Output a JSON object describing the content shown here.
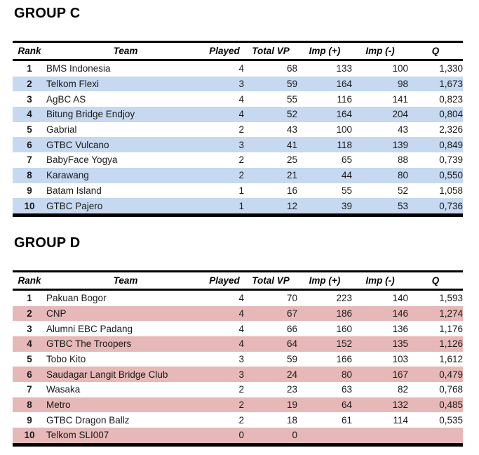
{
  "groups": [
    {
      "title": "GROUP C",
      "highlight_color": "#C6D9F0",
      "columns": [
        "Rank",
        "Team",
        "Played",
        "Total VP",
        "Imp (+)",
        "Imp (-)",
        "Q"
      ],
      "rows": [
        {
          "shaded": false,
          "cells": [
            "1",
            "BMS Indonesia",
            "4",
            "68",
            "133",
            "100",
            "1,330"
          ]
        },
        {
          "shaded": true,
          "cells": [
            "2",
            "Telkom Flexi",
            "3",
            "59",
            "164",
            "98",
            "1,673"
          ]
        },
        {
          "shaded": false,
          "cells": [
            "3",
            "AgBC AS",
            "4",
            "55",
            "116",
            "141",
            "0,823"
          ]
        },
        {
          "shaded": true,
          "cells": [
            "4",
            "Bitung Bridge Endjoy",
            "4",
            "52",
            "164",
            "204",
            "0,804"
          ]
        },
        {
          "shaded": false,
          "cells": [
            "5",
            "Gabrial",
            "2",
            "43",
            "100",
            "43",
            "2,326"
          ]
        },
        {
          "shaded": true,
          "cells": [
            "6",
            "GTBC Vulcano",
            "3",
            "41",
            "118",
            "139",
            "0,849"
          ]
        },
        {
          "shaded": false,
          "cells": [
            "7",
            "BabyFace Yogya",
            "2",
            "25",
            "65",
            "88",
            "0,739"
          ]
        },
        {
          "shaded": true,
          "cells": [
            "8",
            "Karawang",
            "2",
            "21",
            "44",
            "80",
            "0,550"
          ]
        },
        {
          "shaded": false,
          "cells": [
            "9",
            "Batam Island",
            "1",
            "16",
            "55",
            "52",
            "1,058"
          ]
        },
        {
          "shaded": true,
          "cells": [
            "10",
            "GTBC Pajero",
            "1",
            "12",
            "39",
            "53",
            "0,736"
          ]
        }
      ]
    },
    {
      "title": "GROUP D",
      "highlight_color": "#E6B9B8",
      "columns": [
        "Rank",
        "Team",
        "Played",
        "Total VP",
        "Imp (+)",
        "Imp (-)",
        "Q"
      ],
      "rows": [
        {
          "shaded": false,
          "cells": [
            "1",
            "Pakuan Bogor",
            "4",
            "70",
            "223",
            "140",
            "1,593"
          ]
        },
        {
          "shaded": true,
          "cells": [
            "2",
            "CNP",
            "4",
            "67",
            "186",
            "146",
            "1,274"
          ]
        },
        {
          "shaded": false,
          "cells": [
            "3",
            "Alumni EBC Padang",
            "4",
            "66",
            "160",
            "136",
            "1,176"
          ]
        },
        {
          "shaded": true,
          "cells": [
            "4",
            "GTBC The Troopers",
            "4",
            "64",
            "152",
            "135",
            "1,126"
          ]
        },
        {
          "shaded": false,
          "cells": [
            "5",
            "Tobo Kito",
            "3",
            "59",
            "166",
            "103",
            "1,612"
          ]
        },
        {
          "shaded": true,
          "cells": [
            "6",
            "Saudagar Langit Bridge Club",
            "3",
            "24",
            "80",
            "167",
            "0,479"
          ]
        },
        {
          "shaded": false,
          "cells": [
            "7",
            "Wasaka",
            "2",
            "23",
            "63",
            "82",
            "0,768"
          ]
        },
        {
          "shaded": true,
          "cells": [
            "8",
            "Metro",
            "2",
            "19",
            "64",
            "132",
            "0,485"
          ]
        },
        {
          "shaded": false,
          "cells": [
            "9",
            "GTBC Dragon Ballz",
            "2",
            "18",
            "61",
            "114",
            "0,535"
          ]
        },
        {
          "shaded": true,
          "cells": [
            "10",
            "Telkom SLI007",
            "0",
            "0",
            "",
            "",
            ""
          ]
        }
      ]
    }
  ]
}
